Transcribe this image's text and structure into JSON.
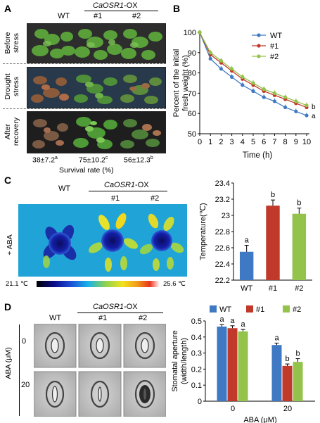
{
  "panels": {
    "a": {
      "letter": "A",
      "wt": "WT",
      "ox": "CaOSR1",
      "ox_suffix": "-OX",
      "lines": [
        "#1",
        "#2"
      ],
      "rows": [
        "Before stress",
        "Drought stress",
        "After recovery"
      ],
      "rows_split": [
        [
          "Before",
          "stress"
        ],
        [
          "Drought",
          "stress"
        ],
        [
          "After",
          "recovery"
        ]
      ],
      "survival": [
        {
          "value": "38±7.2",
          "sup": "a"
        },
        {
          "value": "75±10.2",
          "sup": "c"
        },
        {
          "value": "56±12.3",
          "sup": "b"
        }
      ],
      "survival_label": "Survival rate (%)"
    },
    "b": {
      "letter": "B"
    },
    "c": {
      "letter": "C",
      "wt": "WT",
      "ox": "CaOSR1",
      "ox_suffix": "-OX",
      "lines": [
        "#1",
        "#2"
      ],
      "treatment": "+ ABA",
      "scale_min": "21.1 ℃",
      "scale_max": "25.6 ℃"
    },
    "d": {
      "letter": "D",
      "wt": "WT",
      "ox": "CaOSR1",
      "ox_suffix": "-OX",
      "lines": [
        "#1",
        "#2"
      ],
      "aba_axis": "ABA (μM)",
      "aba_levels": [
        "0",
        "20"
      ]
    }
  },
  "colors": {
    "wt": "#3f79c4",
    "line1": "#c0392b",
    "line2": "#93c34a"
  },
  "chart_data": [
    {
      "type": "line",
      "panel": "B",
      "xlabel": "Time (h)",
      "ylabel": "Percent of the initial fresh weight (%)",
      "ylabel_lines": [
        "Percent of the initial",
        "fresh weight (%)"
      ],
      "x": [
        0,
        1,
        2,
        3,
        4,
        5,
        6,
        7,
        8,
        9,
        10
      ],
      "xlim": [
        0,
        10
      ],
      "ylim": [
        50,
        100
      ],
      "yticks": [
        50,
        60,
        70,
        80,
        90,
        100
      ],
      "legend": "top-right",
      "series": [
        {
          "name": "WT",
          "color": "#3f79c4",
          "values": [
            100,
            87,
            82,
            78,
            74,
            71,
            68,
            66,
            63,
            61,
            59
          ]
        },
        {
          "name": "#1",
          "color": "#c0392b",
          "values": [
            100,
            89,
            85,
            81,
            77,
            74,
            71,
            69,
            67,
            65,
            63
          ]
        },
        {
          "name": "#2",
          "color": "#93c34a",
          "values": [
            100,
            90,
            86,
            82,
            78,
            75,
            72,
            70,
            68,
            66,
            64
          ]
        }
      ],
      "end_labels": [
        {
          "text": "b",
          "y": 63.5
        },
        {
          "text": "a",
          "y": 59
        }
      ]
    },
    {
      "type": "bar",
      "panel": "C",
      "ylabel": "Temperature(℃)",
      "categories": [
        "WT",
        "#1",
        "#2"
      ],
      "values": [
        22.55,
        23.12,
        23.02
      ],
      "errors": [
        0.08,
        0.07,
        0.07
      ],
      "letters": [
        "a",
        "b",
        "b"
      ],
      "colors": [
        "#3f79c4",
        "#c0392b",
        "#93c34a"
      ],
      "ylim": [
        22.2,
        23.4
      ],
      "yticks": [
        "22.2",
        "22.4",
        "22.6",
        "22.8",
        "23",
        "23.2",
        "23.4"
      ]
    },
    {
      "type": "bar",
      "panel": "D",
      "ylabel": "Stomatal aperture (width/length)",
      "ylabel_lines": [
        "Stomatal aperture",
        "(width/length)"
      ],
      "xlabel": "ABA (μM)",
      "categories": [
        "0",
        "20"
      ],
      "ylim": [
        0,
        0.5
      ],
      "yticks": [
        "0",
        "0.1",
        "0.2",
        "0.3",
        "0.4",
        "0.5"
      ],
      "legend": "top",
      "series": [
        {
          "name": "WT",
          "color": "#3f79c4",
          "values": [
            0.465,
            0.35
          ],
          "errors": [
            0.012,
            0.012
          ],
          "letters": [
            "a",
            "a"
          ]
        },
        {
          "name": "#1",
          "color": "#c0392b",
          "values": [
            0.455,
            0.22
          ],
          "errors": [
            0.015,
            0.012
          ],
          "letters": [
            "a",
            "b"
          ]
        },
        {
          "name": "#2",
          "color": "#93c34a",
          "values": [
            0.435,
            0.245
          ],
          "errors": [
            0.012,
            0.02
          ],
          "letters": [
            "a",
            "b"
          ]
        }
      ]
    }
  ]
}
